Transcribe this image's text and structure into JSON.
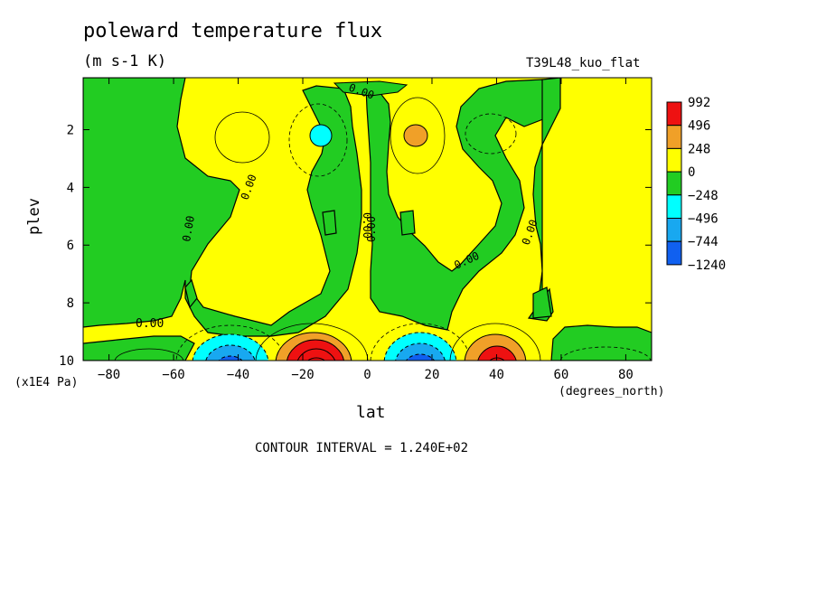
{
  "header": {
    "title": "poleward temperature flux",
    "units": "(m s-1 K)",
    "run_name": "T39L48_kuo_flat"
  },
  "footer": {
    "contour_interval": "CONTOUR INTERVAL = 1.240E+02"
  },
  "contour_label": "0.00",
  "colors": {
    "yellow": "#ffff00",
    "green": "#22cc22",
    "orange": "#f0a028",
    "red": "#ee1111",
    "cyan": "#00ffff",
    "light_blue": "#18a8f0",
    "blue": "#1060f0"
  },
  "chart_data": {
    "type": "heatmap",
    "title": "poleward temperature flux",
    "subtitle": "(m s-1 K)",
    "xlabel": "lat",
    "xunits": "(degrees_north)",
    "ylabel": "plev",
    "yunits": "(x1E4 Pa)",
    "xlim": [
      -88,
      88
    ],
    "ylim": [
      10,
      0.2
    ],
    "x_ticks": [
      -80,
      -60,
      -40,
      -20,
      0,
      20,
      40,
      60,
      80
    ],
    "y_ticks": [
      2,
      4,
      6,
      8,
      10
    ],
    "legend_levels": [
      "992",
      "496",
      "248",
      "0",
      "-248",
      "-496",
      "-744",
      "-1240"
    ],
    "legend_colors": [
      "#ee1111",
      "#f0a028",
      "#ffff00",
      "#22cc22",
      "#00ffff",
      "#18a8f0",
      "#1060f0"
    ],
    "contour_interval": 124,
    "features": [
      {
        "lat": -15,
        "plev": 9.6,
        "value": 992,
        "kind": "max"
      },
      {
        "lat": 40,
        "plev": 9.6,
        "value": 700,
        "kind": "max"
      },
      {
        "lat": 15,
        "plev": 9.7,
        "value": -700,
        "kind": "min"
      },
      {
        "lat": -42,
        "plev": 9.7,
        "value": -600,
        "kind": "min"
      },
      {
        "lat": -15,
        "plev": 2.1,
        "value": -300,
        "kind": "min"
      },
      {
        "lat": 15,
        "plev": 2.1,
        "value": 300,
        "kind": "max"
      }
    ]
  }
}
